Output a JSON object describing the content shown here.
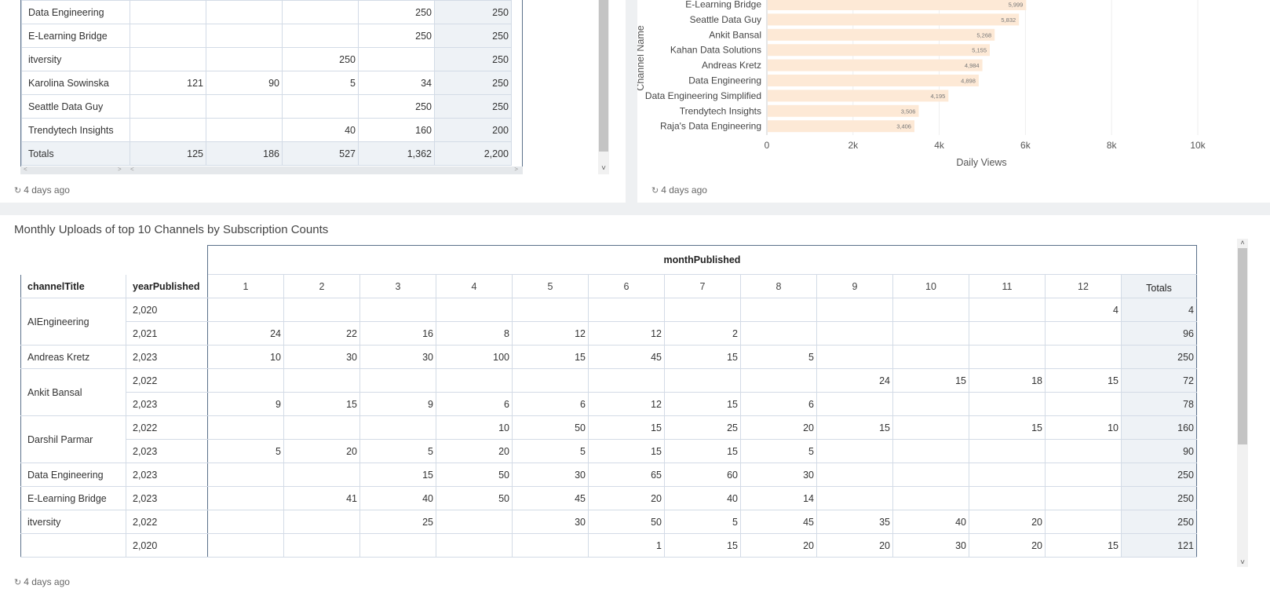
{
  "top_left": {
    "rows": [
      {
        "label": "Data Engineering",
        "cells": [
          "",
          "",
          "",
          "250"
        ],
        "total": "250"
      },
      {
        "label": "E-Learning Bridge",
        "cells": [
          "",
          "",
          "",
          "250"
        ],
        "total": "250"
      },
      {
        "label": "itversity",
        "cells": [
          "",
          "",
          "250",
          ""
        ],
        "total": "250"
      },
      {
        "label": "Karolina Sowinska",
        "cells": [
          "121",
          "90",
          "5",
          "34"
        ],
        "total": "250"
      },
      {
        "label": "Seattle Data Guy",
        "cells": [
          "",
          "",
          "",
          "250"
        ],
        "total": "250"
      },
      {
        "label": "Trendytech Insights",
        "cells": [
          "",
          "",
          "40",
          "160"
        ],
        "total": "200"
      }
    ],
    "totals": {
      "label": "Totals",
      "cells": [
        "125",
        "186",
        "527",
        "1,362"
      ],
      "total": "2,200"
    },
    "timestamp": "4 days ago"
  },
  "chart": {
    "timestamp": "4 days ago"
  },
  "chart_data": {
    "type": "bar",
    "orientation": "horizontal",
    "categories": [
      "E-Learning Bridge",
      "Seattle Data Guy",
      "Ankit Bansal",
      "Kahan Data Solutions",
      "Andreas Kretz",
      "Data Engineering",
      "Data Engineering Simplified",
      "Trendytech Insights",
      "Raja's Data Engineering"
    ],
    "values": [
      5999,
      5832,
      5268,
      5155,
      4984,
      4898,
      4195,
      3506,
      3406
    ],
    "value_labels": [
      "5,999",
      "5,832",
      "5,268",
      "5,155",
      "4,984",
      "4,898",
      "4,195",
      "3,506",
      "3,406"
    ],
    "xlabel": "Daily Views",
    "ylabel": "Channel Name",
    "xlim": [
      0,
      10000
    ],
    "xticks": [
      "0",
      "2k",
      "4k",
      "6k",
      "8k",
      "10k"
    ],
    "bar_color": "#fde9d6",
    "grid": true
  },
  "bottom": {
    "title": "Monthly Uploads of top 10 Channels by Subscription Counts",
    "col_group_header": "monthPublished",
    "row_headers": [
      "channelTitle",
      "yearPublished"
    ],
    "months": [
      "1",
      "2",
      "3",
      "4",
      "5",
      "6",
      "7",
      "8",
      "9",
      "10",
      "11",
      "12"
    ],
    "totals_header": "Totals",
    "groups": [
      {
        "channel": "AIEngineering",
        "rows": [
          {
            "year": "2,020",
            "cells": [
              "",
              "",
              "",
              "",
              "",
              "",
              "",
              "",
              "",
              "",
              "",
              "4"
            ],
            "total": "4"
          },
          {
            "year": "2,021",
            "cells": [
              "24",
              "22",
              "16",
              "8",
              "12",
              "12",
              "2",
              "",
              "",
              "",
              "",
              ""
            ],
            "total": "96"
          }
        ]
      },
      {
        "channel": "Andreas Kretz",
        "rows": [
          {
            "year": "2,023",
            "cells": [
              "10",
              "30",
              "30",
              "100",
              "15",
              "45",
              "15",
              "5",
              "",
              "",
              "",
              ""
            ],
            "total": "250"
          }
        ]
      },
      {
        "channel": "Ankit Bansal",
        "rows": [
          {
            "year": "2,022",
            "cells": [
              "",
              "",
              "",
              "",
              "",
              "",
              "",
              "",
              "24",
              "15",
              "18",
              "15"
            ],
            "total": "72"
          },
          {
            "year": "2,023",
            "cells": [
              "9",
              "15",
              "9",
              "6",
              "6",
              "12",
              "15",
              "6",
              "",
              "",
              "",
              ""
            ],
            "total": "78"
          }
        ]
      },
      {
        "channel": "Darshil Parmar",
        "rows": [
          {
            "year": "2,022",
            "cells": [
              "",
              "",
              "",
              "10",
              "50",
              "15",
              "25",
              "20",
              "15",
              "",
              "15",
              "10"
            ],
            "total": "160"
          },
          {
            "year": "2,023",
            "cells": [
              "5",
              "20",
              "5",
              "20",
              "5",
              "15",
              "15",
              "5",
              "",
              "",
              "",
              ""
            ],
            "total": "90"
          }
        ]
      },
      {
        "channel": "Data Engineering",
        "rows": [
          {
            "year": "2,023",
            "cells": [
              "",
              "",
              "15",
              "50",
              "30",
              "65",
              "60",
              "30",
              "",
              "",
              "",
              ""
            ],
            "total": "250"
          }
        ]
      },
      {
        "channel": "E-Learning Bridge",
        "rows": [
          {
            "year": "2,023",
            "cells": [
              "",
              "41",
              "40",
              "50",
              "45",
              "20",
              "40",
              "14",
              "",
              "",
              "",
              ""
            ],
            "total": "250"
          }
        ]
      },
      {
        "channel": "itversity",
        "rows": [
          {
            "year": "2,022",
            "cells": [
              "",
              "",
              "25",
              "",
              "30",
              "50",
              "5",
              "45",
              "35",
              "40",
              "20",
              ""
            ],
            "total": "250"
          }
        ]
      },
      {
        "channel": "",
        "rows": [
          {
            "year": "2,020",
            "cells": [
              "",
              "",
              "",
              "",
              "",
              "1",
              "15",
              "20",
              "20",
              "30",
              "20",
              "15"
            ],
            "total": "121"
          }
        ]
      }
    ],
    "timestamp": "4 days ago"
  }
}
